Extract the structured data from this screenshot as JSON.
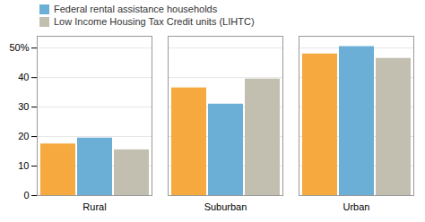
{
  "chart_data": {
    "type": "bar",
    "categories": [
      "Rural",
      "Suburban",
      "Urban"
    ],
    "series": [
      {
        "name": null,
        "color": "#F5A93E",
        "values": [
          17.5,
          36.5,
          48.0
        ]
      },
      {
        "name": "Federal rental assistance households",
        "color": "#6BAED6",
        "values": [
          19.5,
          31.0,
          50.5
        ]
      },
      {
        "name": "Low Income Housing Tax Credit units (LIHTC)",
        "color": "#C2BFB0",
        "values": [
          15.5,
          39.5,
          46.5
        ]
      }
    ],
    "ylim": [
      0,
      54
    ],
    "yticks": [
      0,
      10,
      20,
      30,
      40,
      {
        "value": 50,
        "label": "50%"
      }
    ],
    "grid": true,
    "legend": "upper left"
  }
}
